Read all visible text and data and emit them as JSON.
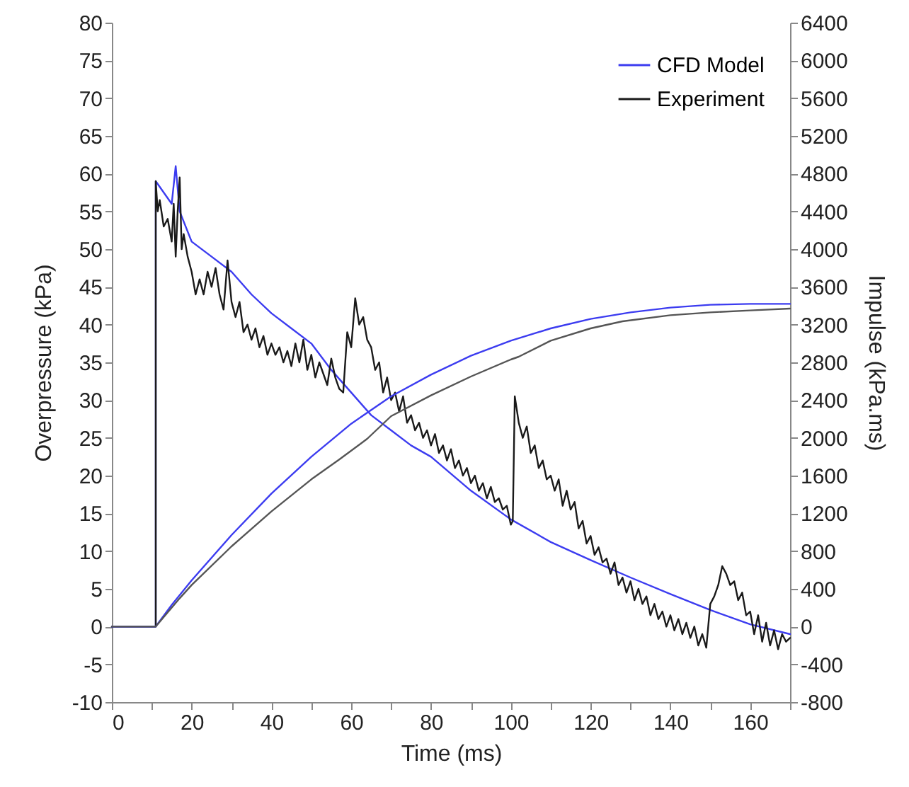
{
  "chart_data": {
    "type": "line",
    "xlabel": "Time (ms)",
    "ylabel": "Overpressure (kPa)",
    "y2label": "Impulse (kPa.ms)",
    "xlim": [
      0,
      170
    ],
    "xticks": [
      0,
      {
        "value": 10,
        "label": null
      },
      20,
      {
        "value": 30,
        "label": null
      },
      40,
      {
        "value": 50,
        "label": null
      },
      60,
      {
        "value": 70,
        "label": null
      },
      80,
      {
        "value": 90,
        "label": null
      },
      100,
      {
        "value": 110,
        "label": null
      },
      120,
      {
        "value": 130,
        "label": null
      },
      140,
      {
        "value": 150,
        "label": null
      },
      160,
      {
        "value": 170,
        "label": null
      }
    ],
    "ylim": [
      -10,
      80
    ],
    "yticks": [
      -10,
      -5,
      0,
      5,
      10,
      15,
      20,
      25,
      30,
      35,
      40,
      45,
      50,
      55,
      60,
      65,
      70,
      75,
      80
    ],
    "y2lim": [
      -800,
      6400
    ],
    "y2ticks": [
      -800,
      -400,
      0,
      400,
      800,
      1200,
      1600,
      2000,
      2400,
      2800,
      3200,
      3600,
      4000,
      4400,
      4800,
      5200,
      5600,
      6000,
      6400
    ],
    "legend": "top right",
    "grid": false,
    "line_style": "solid",
    "marker": "none",
    "series": [
      {
        "name": "CFD Model",
        "color": "#3c3cf0",
        "x": [
          0,
          11,
          11,
          15,
          16,
          17,
          20,
          25,
          30,
          35,
          40,
          45,
          50,
          55,
          60,
          65,
          70,
          75,
          80,
          90,
          100,
          110,
          120,
          130,
          140,
          150,
          160,
          170
        ],
        "values": [
          0,
          0,
          59,
          56,
          61,
          55,
          51,
          49,
          47,
          44,
          41.5,
          39.5,
          37.5,
          34,
          31,
          28,
          26,
          24,
          22.5,
          18,
          14.2,
          11.2,
          8.8,
          6.5,
          4.3,
          2.2,
          0.3,
          -1
        ]
      },
      {
        "name": "Experiment",
        "color": "#1a1a1a",
        "x": [
          0,
          11,
          11,
          11.5,
          12,
          13,
          14,
          15,
          15.5,
          16,
          16.5,
          17,
          17.5,
          18,
          19,
          20,
          21,
          22,
          23,
          24,
          25,
          26,
          27,
          28,
          29,
          30,
          31,
          32,
          33,
          34,
          35,
          36,
          37,
          38,
          39,
          40,
          41,
          42,
          43,
          44,
          45,
          46,
          47,
          48,
          49,
          50,
          51,
          52,
          53,
          54,
          55,
          56,
          57,
          58,
          59,
          60,
          61,
          62,
          63,
          64,
          65,
          66,
          67,
          68,
          69,
          70,
          71,
          72,
          73,
          74,
          75,
          76,
          77,
          78,
          79,
          80,
          81,
          82,
          83,
          84,
          85,
          86,
          87,
          88,
          89,
          90,
          91,
          92,
          93,
          94,
          95,
          96,
          97,
          98,
          99,
          100,
          100.5,
          101,
          102,
          103,
          104,
          105,
          106,
          107,
          108,
          109,
          110,
          111,
          112,
          113,
          114,
          115,
          116,
          117,
          118,
          119,
          120,
          121,
          122,
          123,
          124,
          125,
          126,
          127,
          128,
          129,
          130,
          131,
          132,
          133,
          134,
          135,
          136,
          137,
          138,
          139,
          140,
          141,
          142,
          143,
          144,
          145,
          146,
          147,
          148,
          149,
          150,
          151,
          152,
          153,
          154,
          155,
          156,
          157,
          158,
          159,
          160,
          161,
          162,
          163,
          164,
          165,
          166,
          167,
          168,
          169,
          170
        ],
        "values": [
          0,
          0,
          59,
          55,
          56.5,
          53,
          54,
          51,
          56,
          49,
          55,
          59.5,
          50,
          52,
          49,
          47,
          44,
          46,
          44,
          47,
          45,
          47.5,
          44,
          42,
          48.5,
          43,
          41,
          43,
          39,
          40,
          38,
          39.5,
          37,
          38.5,
          36,
          37.5,
          36,
          37,
          35,
          36.5,
          34.5,
          37.5,
          35,
          38,
          34,
          36,
          33,
          35,
          33.5,
          32,
          35.5,
          33,
          31.5,
          31,
          39,
          37,
          43.5,
          40,
          41,
          38,
          37,
          34,
          35,
          31,
          33,
          30,
          31,
          28.5,
          30.5,
          27,
          28,
          26,
          27,
          25,
          26,
          24,
          25.5,
          23,
          24,
          22,
          23.5,
          21,
          22,
          20,
          21,
          19,
          20,
          18,
          19,
          17,
          18.5,
          16.5,
          17,
          15.5,
          16,
          13.5,
          14,
          30.5,
          27,
          25,
          26.5,
          23,
          24,
          21,
          22,
          19.5,
          20,
          18,
          19.5,
          16,
          18,
          15.5,
          16.5,
          13,
          14,
          11,
          12,
          9.5,
          10.5,
          8.5,
          9,
          7,
          8.5,
          5.5,
          6.5,
          4.5,
          6,
          3.5,
          5,
          3,
          4,
          1.5,
          3,
          1,
          2,
          0,
          1.5,
          -0.5,
          1,
          -1,
          0.5,
          -1.5,
          0,
          -2.5,
          -1,
          -2.8,
          3,
          4,
          5.5,
          8,
          7,
          5.5,
          6,
          3.5,
          4.5,
          1.5,
          2,
          -1,
          1.5,
          -2,
          0.5,
          -2.5,
          -0.5,
          -3,
          -1,
          -2,
          -1.5
        ]
      },
      {
        "color": "#3c3cf0",
        "axis": "y2",
        "x": [
          0,
          11,
          15,
          20,
          30,
          40,
          50,
          60,
          70,
          80,
          90,
          100,
          110,
          120,
          130,
          140,
          150,
          160,
          170
        ],
        "values": [
          0,
          0,
          230,
          490,
          970,
          1410,
          1800,
          2150,
          2440,
          2670,
          2870,
          3030,
          3160,
          3260,
          3330,
          3380,
          3410,
          3420,
          3420
        ]
      },
      {
        "color": "#555555",
        "axis": "y2",
        "x": [
          0,
          11,
          17,
          20,
          30,
          40,
          50,
          57,
          64,
          70,
          80,
          90,
          100,
          102,
          110,
          120,
          128,
          140,
          150,
          160,
          170
        ],
        "values": [
          0,
          0,
          300,
          440,
          850,
          1220,
          1560,
          1770,
          1990,
          2230,
          2450,
          2650,
          2830,
          2860,
          3030,
          3160,
          3235,
          3300,
          3330,
          3350,
          3370
        ]
      }
    ]
  }
}
